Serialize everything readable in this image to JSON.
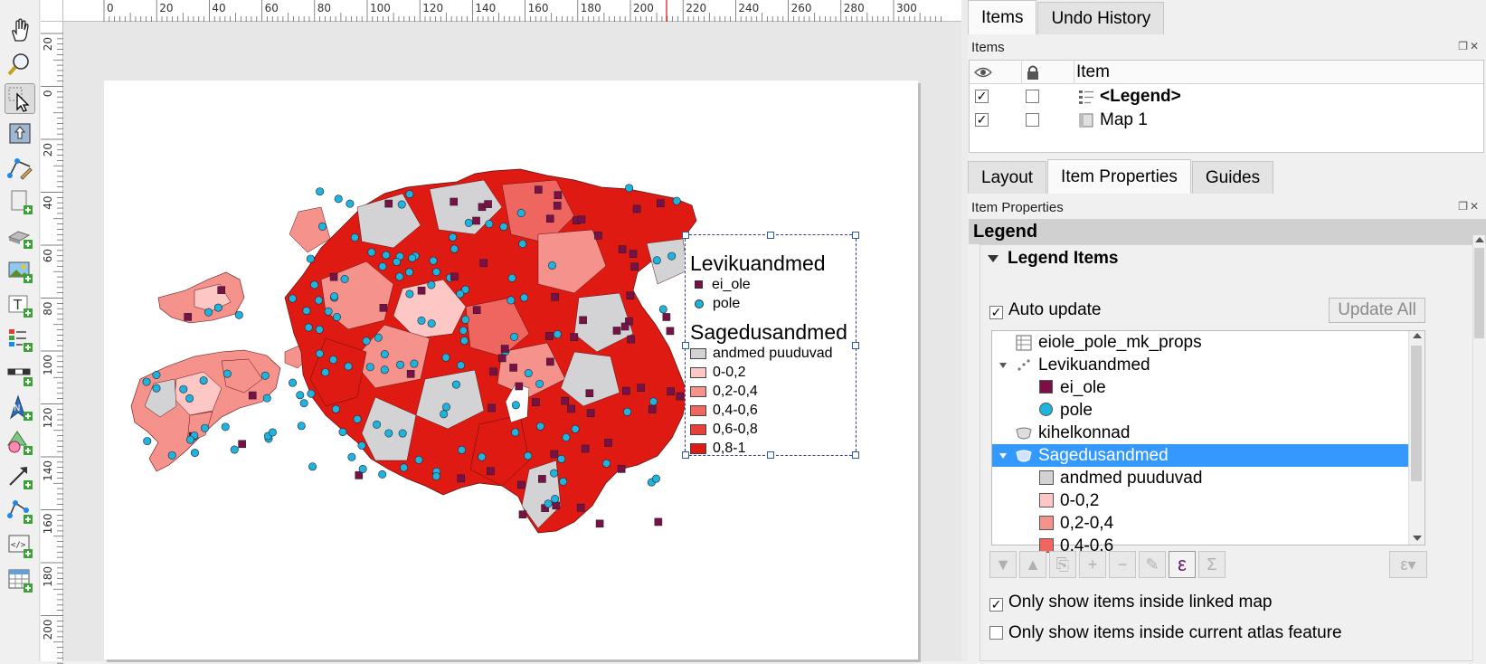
{
  "toolbar": {
    "tools": [
      {
        "name": "pan-tool",
        "icon": "hand-icon"
      },
      {
        "name": "zoom-tool",
        "icon": "zoom-icon"
      },
      {
        "name": "select-tool",
        "icon": "select-arrow-icon",
        "active": true
      },
      {
        "name": "move-content-tool",
        "icon": "move-content-icon"
      },
      {
        "name": "edit-nodes-tool",
        "icon": "edit-nodes-icon"
      },
      {
        "name": "add-map-tool",
        "icon": "add-map-icon"
      },
      {
        "name": "add-3d-map-tool",
        "icon": "add-3d-map-icon"
      },
      {
        "name": "add-picture-tool",
        "icon": "add-picture-icon"
      },
      {
        "name": "add-label-tool",
        "icon": "add-label-icon"
      },
      {
        "name": "add-legend-tool",
        "icon": "add-legend-icon"
      },
      {
        "name": "add-scalebar-tool",
        "icon": "add-scalebar-icon"
      },
      {
        "name": "add-north-arrow-tool",
        "icon": "add-north-arrow-icon"
      },
      {
        "name": "add-shape-tool",
        "icon": "add-shape-icon"
      },
      {
        "name": "add-arrow-tool",
        "icon": "add-arrow-icon"
      },
      {
        "name": "add-node-item-tool",
        "icon": "add-node-item-icon"
      },
      {
        "name": "add-html-tool",
        "icon": "add-html-icon"
      },
      {
        "name": "add-attribute-table-tool",
        "icon": "add-table-icon"
      }
    ]
  },
  "ruler": {
    "top_labels": [
      "0",
      "20",
      "40",
      "60",
      "80",
      "100",
      "120",
      "140",
      "160",
      "180",
      "200",
      "220",
      "240",
      "260",
      "280",
      "300"
    ],
    "left_labels": [
      "20",
      "0",
      "20",
      "40",
      "60",
      "80",
      "100",
      "120",
      "140",
      "160",
      "180",
      "200"
    ]
  },
  "map": {
    "legend": {
      "title1": "Levikuandmed",
      "item_ei_ole": "ei_ole",
      "item_pole": "pole",
      "title2": "Sagedusandmed",
      "classes": [
        {
          "label": "andmed puuduvad",
          "color": "#d3d3d5"
        },
        {
          "label": "0-0,2",
          "color": "#fcc7c5"
        },
        {
          "label": "0,2-0,4",
          "color": "#f6928c"
        },
        {
          "label": "0,4-0,6",
          "color": "#ef6661"
        },
        {
          "label": "0,6-0,8",
          "color": "#e93f3a"
        },
        {
          "label": "0,8-1",
          "color": "#de1a13"
        }
      ]
    },
    "marker_colors": {
      "ei_ole": "#7b1048",
      "pole": "#1fb3e0"
    }
  },
  "items_panel": {
    "tabs": [
      "Items",
      "Undo History"
    ],
    "dock_title": "Items",
    "header_item": "Item",
    "rows": [
      {
        "label": "<Legend>",
        "visible": "✓",
        "locked": ""
      },
      {
        "label": "Map 1",
        "visible": "✓",
        "locked": ""
      }
    ]
  },
  "props_panel": {
    "tabs": [
      "Layout",
      "Item Properties",
      "Guides"
    ],
    "dock_title": "Item Properties",
    "section_title": "Legend",
    "group_title": "Legend Items",
    "auto_update": "Auto update",
    "auto_update_checked": "✓",
    "update_all": "Update All",
    "tree": [
      {
        "label": "eiole_pole_mk_props",
        "icon": "table-icon"
      },
      {
        "label": "Levikuandmed",
        "icon": "points-layer-icon"
      },
      {
        "label": "ei_ole",
        "icon": "square-marker-icon"
      },
      {
        "label": "pole",
        "icon": "circle-marker-icon"
      },
      {
        "label": "kihelkonnad",
        "icon": "polygon-layer-icon"
      },
      {
        "label": "Sagedusandmed",
        "icon": "polygon-layer-icon"
      },
      {
        "label": "andmed puuduvad",
        "color": "#d3d3d5"
      },
      {
        "label": "0-0,2",
        "color": "#fcc7c5"
      },
      {
        "label": "0,2-0,4",
        "color": "#f6928c"
      },
      {
        "label": "0,4-0,6",
        "color": "#ef6661"
      }
    ],
    "buttons": [
      {
        "name": "filter-button",
        "icon": "filter-icon",
        "glyph": "▼"
      },
      {
        "name": "move-up-button",
        "icon": "arrow-up-icon",
        "glyph": "▲"
      },
      {
        "name": "add-group-button",
        "icon": "add-group-icon",
        "glyph": "⎘"
      },
      {
        "name": "add-item-button",
        "icon": "plus-icon",
        "glyph": "+"
      },
      {
        "name": "remove-item-button",
        "icon": "minus-icon",
        "glyph": "−"
      },
      {
        "name": "edit-item-button",
        "icon": "edit-icon",
        "glyph": "✎"
      },
      {
        "name": "expression-button",
        "icon": "epsilon-icon",
        "glyph": "ε"
      },
      {
        "name": "sum-button",
        "icon": "sigma-icon",
        "glyph": "Σ"
      }
    ],
    "only_linked_map": "Only show items inside linked map",
    "only_linked_map_checked": "✓",
    "only_atlas": "Only show items inside current atlas feature",
    "only_atlas_checked": ""
  }
}
